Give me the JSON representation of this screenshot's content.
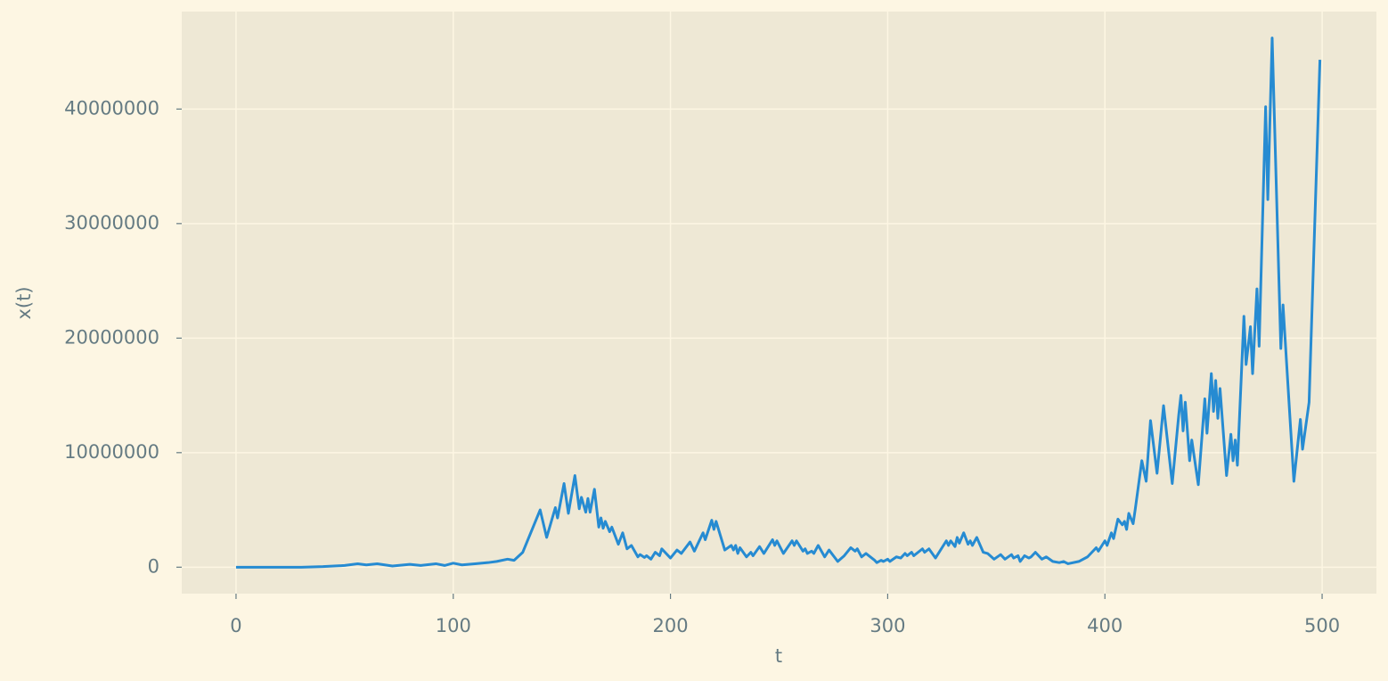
{
  "chart_data": {
    "type": "line",
    "xlabel": "t",
    "ylabel": "x(t)",
    "x": [
      0,
      30,
      40,
      50,
      56,
      60,
      65,
      72,
      80,
      85,
      92,
      96,
      100,
      104,
      110,
      116,
      120,
      125,
      128,
      132,
      140,
      143,
      147,
      148,
      151,
      153,
      156,
      158,
      159,
      161,
      162,
      163,
      165,
      167,
      168,
      169,
      170,
      172,
      173,
      176,
      178,
      180,
      182,
      185,
      186,
      188,
      189,
      191,
      193,
      195,
      196,
      200,
      203,
      205,
      209,
      211,
      215,
      216,
      219,
      220,
      221,
      225,
      228,
      229,
      230,
      231,
      232,
      235,
      237,
      238,
      241,
      243,
      247,
      248,
      249,
      252,
      256,
      257,
      258,
      261,
      262,
      263,
      265,
      266,
      268,
      271,
      273,
      277,
      280,
      283,
      285,
      286,
      288,
      290,
      294,
      295,
      297,
      298,
      300,
      301,
      304,
      306,
      308,
      309,
      311,
      312,
      316,
      317,
      319,
      322,
      327,
      328,
      329,
      331,
      332,
      333,
      335,
      337,
      338,
      339,
      341,
      344,
      346,
      349,
      352,
      354,
      357,
      358,
      360,
      361,
      363,
      365,
      366,
      368,
      371,
      373,
      376,
      379,
      381,
      383,
      388,
      392,
      396,
      397,
      400,
      401,
      403,
      404,
      406,
      408,
      409,
      410,
      411,
      413,
      414,
      417,
      419,
      421,
      424,
      427,
      431,
      434,
      435,
      436,
      437,
      439,
      440,
      443,
      446,
      447,
      449,
      450,
      451,
      452,
      453,
      456,
      458,
      459,
      460,
      461,
      464,
      465,
      467,
      468,
      470,
      471,
      474,
      475,
      477,
      481,
      482,
      487,
      490,
      491,
      494,
      499
    ],
    "series": [
      {
        "name": "x(t)",
        "color": "#268bd2",
        "values": [
          0,
          0,
          50000,
          150000,
          300000,
          200000,
          300000,
          100000,
          250000,
          150000,
          300000,
          150000,
          350000,
          200000,
          300000,
          400000,
          500000,
          700000,
          600000,
          1300000,
          5000000,
          2600000,
          5200000,
          4300000,
          7300000,
          4700000,
          8000000,
          5100000,
          6100000,
          4800000,
          6000000,
          4800000,
          6800000,
          3500000,
          4300000,
          3400000,
          4000000,
          3100000,
          3500000,
          2000000,
          3000000,
          1600000,
          1900000,
          900000,
          1100000,
          850000,
          1000000,
          700000,
          1300000,
          1000000,
          1600000,
          800000,
          1500000,
          1200000,
          2200000,
          1400000,
          3000000,
          2400000,
          4100000,
          3300000,
          4000000,
          1500000,
          1900000,
          1500000,
          1900000,
          1200000,
          1700000,
          900000,
          1300000,
          1000000,
          1800000,
          1200000,
          2400000,
          1900000,
          2300000,
          1200000,
          2300000,
          1900000,
          2300000,
          1400000,
          1600000,
          1200000,
          1400000,
          1200000,
          1900000,
          900000,
          1500000,
          500000,
          1000000,
          1700000,
          1400000,
          1600000,
          900000,
          1200000,
          600000,
          400000,
          600000,
          500000,
          700000,
          500000,
          900000,
          800000,
          1200000,
          1000000,
          1300000,
          1000000,
          1600000,
          1300000,
          1600000,
          800000,
          2300000,
          1900000,
          2300000,
          1800000,
          2600000,
          2100000,
          3000000,
          2000000,
          2300000,
          1900000,
          2600000,
          1300000,
          1200000,
          700000,
          1100000,
          700000,
          1100000,
          800000,
          1000000,
          500000,
          1000000,
          800000,
          900000,
          1300000,
          700000,
          900000,
          500000,
          400000,
          500000,
          300000,
          500000,
          900000,
          1700000,
          1400000,
          2300000,
          1900000,
          3000000,
          2500000,
          4200000,
          3700000,
          4000000,
          3300000,
          4700000,
          3800000,
          5100000,
          9300000,
          7500000,
          12800000,
          8200000,
          14100000,
          7300000,
          13300000,
          15000000,
          11900000,
          14400000,
          9300000,
          11100000,
          7200000,
          14700000,
          11700000,
          16900000,
          13600000,
          16300000,
          13000000,
          15600000,
          8000000,
          11600000,
          9300000,
          11100000,
          8900000,
          21900000,
          17700000,
          21000000,
          16900000,
          24300000,
          19300000,
          40200000,
          32100000,
          46200000,
          19100000,
          22900000,
          7500000,
          12900000,
          10300000,
          14400000,
          44300000
        ]
      }
    ],
    "xlim": [
      -25,
      525
    ],
    "xticks": [
      0,
      100,
      200,
      300,
      400,
      500
    ],
    "ylim": [
      -2310000,
      48510000
    ],
    "yticks": [
      0,
      10000000,
      20000000,
      30000000,
      40000000
    ],
    "grid": true
  }
}
